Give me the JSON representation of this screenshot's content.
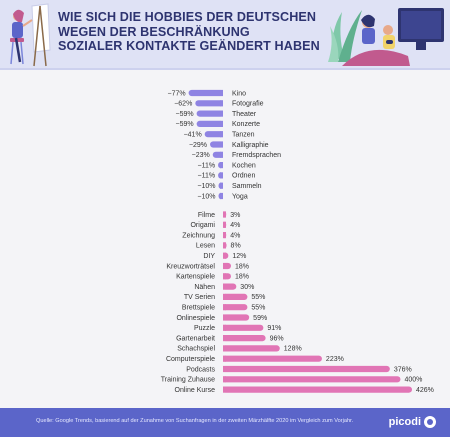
{
  "header": {
    "title_lines": [
      "WIE SICH DIE HOBBIES DER DEUTSCHEN",
      "WEGEN DER BESCHRÄNKUNG",
      "SOZIALER KONTAKTE GEÄNDERT HABEN"
    ]
  },
  "footer": {
    "source": "Quelle: Google Trends, basierend auf der Zunahme von Suchanfragen in der zweiten Märzhälfte 2020 im Vergleich zum Vorjahr.",
    "brand": "picodi"
  },
  "colors": {
    "negative_bar": "#8f84e3",
    "positive_bar": "#e175b5",
    "header_bg": "#dfe2f5",
    "footer_bg": "#5b65c9",
    "title": "#2e3470",
    "text": "#333333"
  },
  "chart_data": [
    {
      "type": "bar",
      "orientation": "horizontal",
      "unit": "%",
      "categories": [
        "Kino",
        "Fotografie",
        "Theater",
        "Konzerte",
        "Tanzen",
        "Kalligraphie",
        "Fremdsprachen",
        "Kochen",
        "Ordnen",
        "Sammeln",
        "Yoga"
      ],
      "values": [
        -77,
        -62,
        -59,
        -59,
        -41,
        -29,
        -23,
        -11,
        -11,
        -10,
        -10
      ],
      "labels": [
        "−77%",
        "−62%",
        "−59%",
        "−59%",
        "−41%",
        "−29%",
        "−23%",
        "−11%",
        "−11%",
        "−10%",
        "−10%"
      ]
    },
    {
      "type": "bar",
      "orientation": "horizontal",
      "unit": "%",
      "categories": [
        "Filme",
        "Origami",
        "Zeichnung",
        "Lesen",
        "DIY",
        "Kreuzworträtsel",
        "Kartenspiele",
        "Nähen",
        "TV Serien",
        "Brettspiele",
        "Onlinespiele",
        "Puzzle",
        "Gartenarbeit",
        "Schachspiel",
        "Computerspiele",
        "Podcasts",
        "Training Zuhause",
        "Online Kurse"
      ],
      "values": [
        3,
        4,
        4,
        8,
        12,
        18,
        18,
        30,
        55,
        55,
        59,
        91,
        96,
        128,
        223,
        376,
        400,
        426
      ],
      "labels": [
        "3%",
        "4%",
        "4%",
        "8%",
        "12%",
        "18%",
        "18%",
        "30%",
        "55%",
        "55%",
        "59%",
        "91%",
        "96%",
        "128%",
        "223%",
        "376%",
        "400%",
        "426%"
      ]
    }
  ]
}
